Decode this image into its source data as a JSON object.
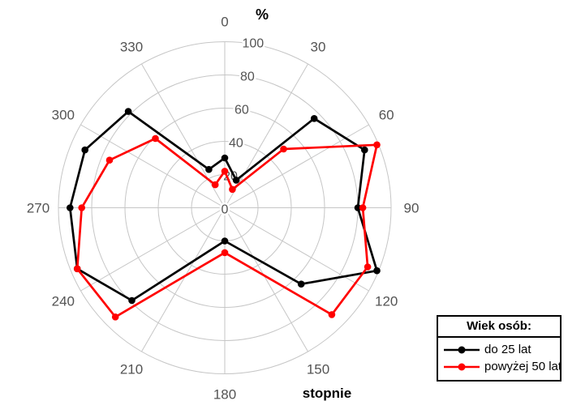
{
  "figure": {
    "percent_label": "%",
    "degrees_label": "stopnie"
  },
  "legend": {
    "title": "Wiek osób:",
    "items": [
      {
        "label": "do 25 lat",
        "color": "#000000"
      },
      {
        "label": "powyżej 50 lat",
        "color": "#ff0000"
      }
    ]
  },
  "chart_data": {
    "type": "line",
    "subtype": "polar-radar, 0° at top, angles increase clockwise, closed polygons with dot markers",
    "title": "",
    "radial_axis_label": "%",
    "angular_axis_label": "stopnie",
    "rlim": [
      0,
      100
    ],
    "radial_ticks": [
      0,
      20,
      40,
      60,
      80,
      100
    ],
    "angular_tick_labels": [
      0,
      30,
      60,
      90,
      120,
      150,
      180,
      210,
      240,
      270,
      300,
      330
    ],
    "grid": true,
    "grid_color": "#c6c6c6",
    "tick_label_color": "#545454",
    "legend_position": "outside bottom-right, boxed with title",
    "angles_deg": [
      0,
      22.5,
      45,
      67.5,
      90,
      112.5,
      135,
      180,
      225,
      247.5,
      270,
      292.5,
      315,
      337.5
    ],
    "series": [
      {
        "name": "do 25 lat",
        "color": "#000000",
        "values": [
          30,
          18,
          76,
          91,
          80,
          99,
          65,
          20,
          79,
          96,
          93,
          91,
          82,
          25
        ]
      },
      {
        "name": "powyżej 50 lat",
        "color": "#ff0000",
        "values": [
          22,
          12,
          50,
          99,
          83,
          93,
          91,
          27,
          93,
          96,
          86,
          75,
          59,
          15
        ]
      }
    ]
  }
}
